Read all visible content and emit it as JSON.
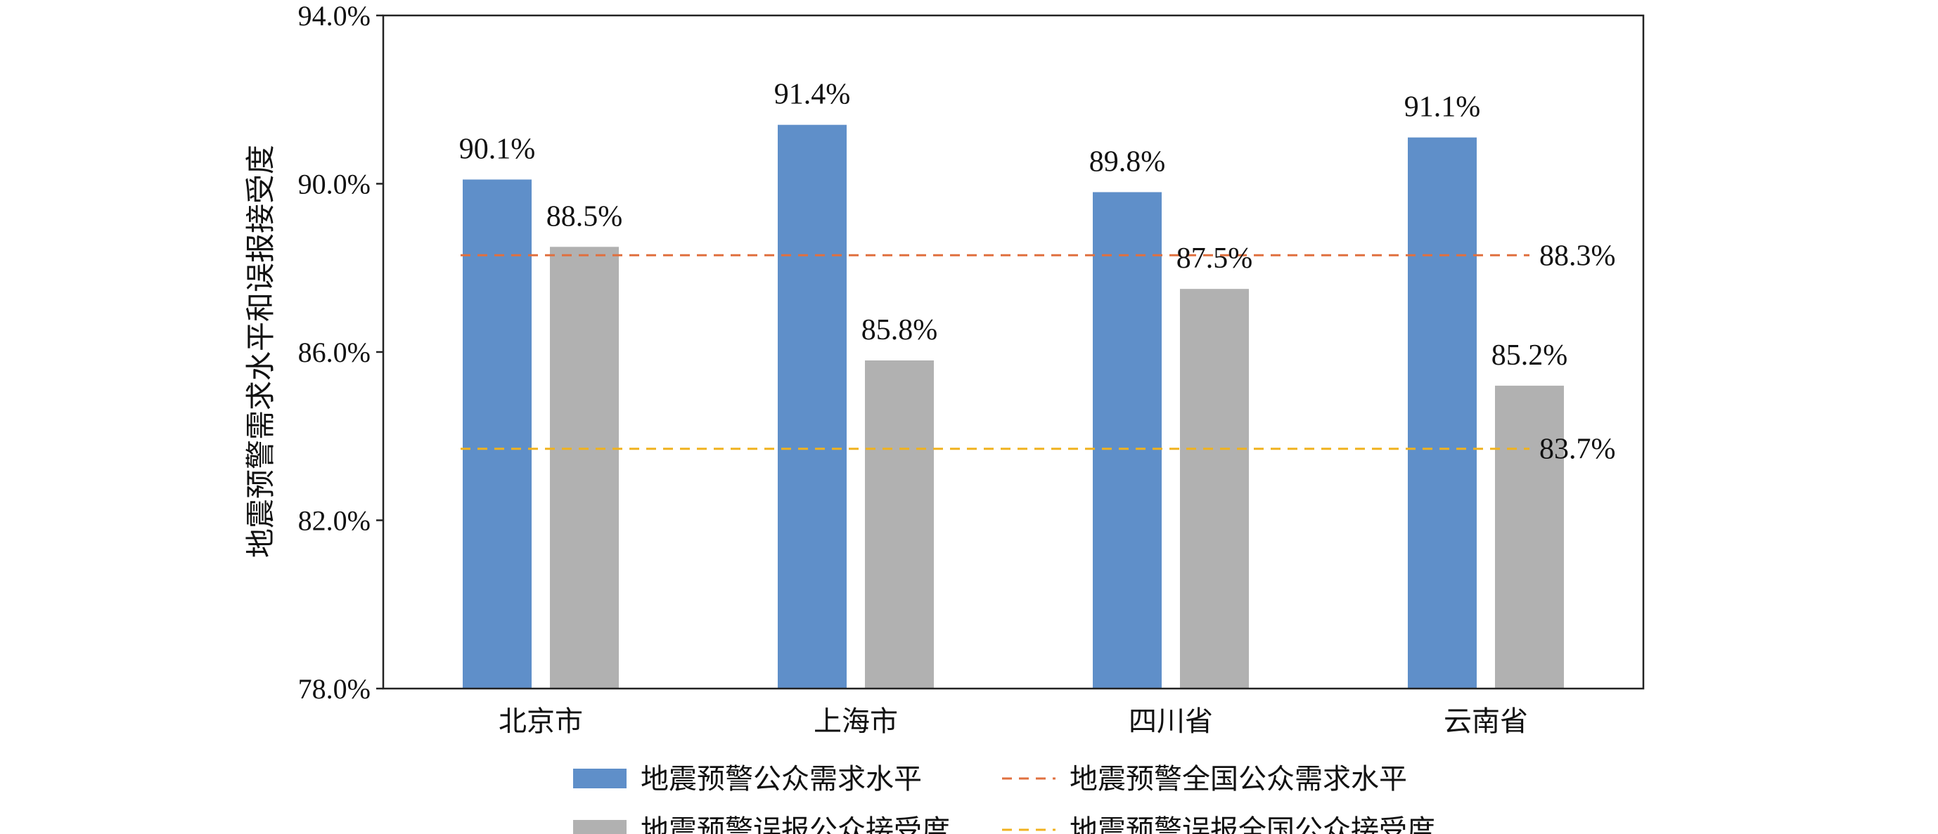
{
  "chart_data": {
    "type": "bar",
    "ylabel": "地震预警需求水平和误报接受度",
    "ylim": [
      78.0,
      94.0
    ],
    "yticks": [
      78.0,
      82.0,
      86.0,
      90.0,
      94.0
    ],
    "ytick_labels": [
      "78.0%",
      "82.0%",
      "86.0%",
      "90.0%",
      "94.0%"
    ],
    "categories": [
      "北京市",
      "上海市",
      "四川省",
      "云南省"
    ],
    "series": [
      {
        "name": "地震预警公众需求水平",
        "color": "#5f8fc9",
        "values": [
          90.1,
          91.4,
          89.8,
          91.1
        ],
        "labels": [
          "90.1%",
          "91.4%",
          "89.8%",
          "91.1%"
        ]
      },
      {
        "name": "地震预警误报公众接受度",
        "color": "#b1b1b1",
        "values": [
          88.5,
          85.8,
          87.5,
          85.2
        ],
        "labels": [
          "88.5%",
          "85.8%",
          "87.5%",
          "85.2%"
        ]
      }
    ],
    "reference_lines": [
      {
        "name": "地震预警全国公众需求水平",
        "value": 88.3,
        "label": "88.3%",
        "color": "#e0703f",
        "style": "dashed"
      },
      {
        "name": "地震预警误报全国公众接受度",
        "value": 83.7,
        "label": "83.7%",
        "color": "#f0b21f",
        "style": "dashed"
      }
    ],
    "legend_position": "bottom",
    "grid": false
  }
}
